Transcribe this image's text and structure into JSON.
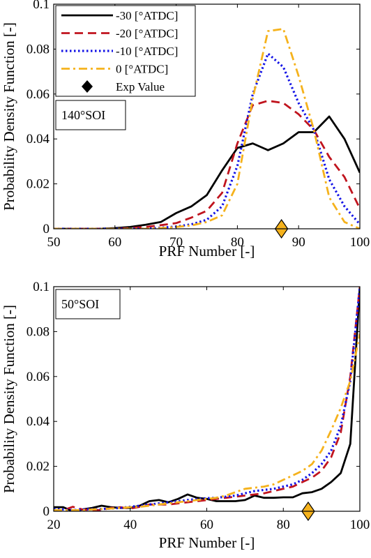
{
  "chart_data": [
    {
      "type": "line",
      "annotation": "140°SOI",
      "xlabel": "PRF Number [-]",
      "ylabel": "Probability Density Function [-]",
      "xlim": [
        50,
        100
      ],
      "ylim": [
        0,
        0.1
      ],
      "xticks": [
        50,
        60,
        70,
        80,
        90,
        100
      ],
      "yticks": [
        0,
        0.02,
        0.04,
        0.06,
        0.08,
        0.1
      ],
      "xtick_labels": [
        "50",
        "60",
        "70",
        "80",
        "90",
        "100"
      ],
      "ytick_labels": [
        "0",
        "0.02",
        "0.04",
        "0.06",
        "0.08",
        "0.1"
      ],
      "legend_position": "top-left",
      "series": [
        {
          "name": "-30 [°ATDC]",
          "color": "#000000",
          "style": "solid",
          "x": [
            50,
            52.5,
            55,
            57.5,
            60,
            62.5,
            65,
            67.5,
            70,
            72.5,
            75,
            77.5,
            80,
            82.5,
            85,
            87.5,
            90,
            92.5,
            95,
            97.5,
            100
          ],
          "y": [
            0,
            0,
            0,
            0,
            0.0003,
            0.0008,
            0.0018,
            0.003,
            0.007,
            0.01,
            0.015,
            0.026,
            0.036,
            0.038,
            0.035,
            0.038,
            0.043,
            0.043,
            0.05,
            0.04,
            0.025
          ]
        },
        {
          "name": "-20 [°ATDC]",
          "color": "#c0141e",
          "style": "dashed",
          "x": [
            50,
            52.5,
            55,
            57.5,
            60,
            62.5,
            65,
            67.5,
            70,
            72.5,
            75,
            77.5,
            80,
            82.5,
            85,
            87.5,
            90,
            92.5,
            95,
            97.5,
            100
          ],
          "y": [
            0,
            0,
            0,
            0,
            0,
            0.0003,
            0.0008,
            0.0016,
            0.0025,
            0.005,
            0.008,
            0.016,
            0.038,
            0.055,
            0.057,
            0.056,
            0.051,
            0.044,
            0.032,
            0.023,
            0.009
          ]
        },
        {
          "name": "-10 [°ATDC]",
          "color": "#1414e6",
          "style": "dotted",
          "x": [
            50,
            52.5,
            55,
            57.5,
            60,
            62.5,
            65,
            67.5,
            70,
            72.5,
            75,
            77.5,
            80,
            82.5,
            85,
            87.5,
            90,
            92.5,
            95,
            97.5,
            100
          ],
          "y": [
            0,
            0,
            0,
            0,
            0,
            0,
            0,
            0.0005,
            0.001,
            0.002,
            0.004,
            0.01,
            0.028,
            0.06,
            0.078,
            0.072,
            0.056,
            0.044,
            0.022,
            0.01,
            0.002
          ]
        },
        {
          "name": "0 [°ATDC]",
          "color": "#f5b21c",
          "style": "dashdot",
          "x": [
            50,
            52.5,
            55,
            57.5,
            60,
            62.5,
            65,
            67.5,
            70,
            72.5,
            75,
            77.5,
            80,
            82.5,
            85,
            87.5,
            90,
            92.5,
            95,
            97.5,
            100
          ],
          "y": [
            0,
            0,
            0,
            0,
            0,
            0,
            0,
            0.0003,
            0.0008,
            0.0015,
            0.003,
            0.006,
            0.02,
            0.058,
            0.088,
            0.089,
            0.068,
            0.044,
            0.014,
            0.003,
            0
          ]
        }
      ],
      "markers": [
        {
          "name": "Exp Value",
          "x": 87.2,
          "y": 0,
          "color": "#f5b21c"
        }
      ]
    },
    {
      "type": "line",
      "annotation": "50°SOI",
      "xlabel": "PRF Number [-]",
      "ylabel": "Probability Density Function [-]",
      "xlim": [
        20,
        100
      ],
      "ylim": [
        0,
        0.1
      ],
      "xticks": [
        20,
        40,
        60,
        80,
        100
      ],
      "yticks": [
        0,
        0.02,
        0.04,
        0.06,
        0.08,
        0.1
      ],
      "xtick_labels": [
        "20",
        "40",
        "60",
        "80",
        "100"
      ],
      "ytick_labels": [
        "0",
        "0.02",
        "0.04",
        "0.06",
        "0.08",
        "0.1"
      ],
      "series": [
        {
          "name": "-30 [°ATDC]",
          "color": "#000000",
          "style": "solid",
          "x": [
            20,
            22.5,
            25,
            27.5,
            30,
            32.5,
            35,
            37.5,
            40,
            42.5,
            45,
            47.5,
            50,
            52.5,
            55,
            57.5,
            60,
            62.5,
            65,
            67.5,
            70,
            72.5,
            75,
            77.5,
            80,
            82.5,
            85,
            87.5,
            90,
            92.5,
            95,
            97.5,
            100
          ],
          "y": [
            0.0018,
            0.0018,
            0,
            0.0008,
            0.0015,
            0.0025,
            0.0018,
            0.0015,
            0.0015,
            0.0025,
            0.0045,
            0.005,
            0.004,
            0.0055,
            0.0075,
            0.006,
            0.0055,
            0.0045,
            0.0045,
            0.0045,
            0.005,
            0.007,
            0.006,
            0.006,
            0.0062,
            0.0062,
            0.008,
            0.0085,
            0.01,
            0.013,
            0.017,
            0.03,
            0.1
          ]
        },
        {
          "name": "-20 [°ATDC]",
          "color": "#c0141e",
          "style": "dashed",
          "x": [
            20,
            22.5,
            25,
            27.5,
            30,
            32.5,
            35,
            37.5,
            40,
            42.5,
            45,
            47.5,
            50,
            52.5,
            55,
            57.5,
            60,
            62.5,
            65,
            67.5,
            70,
            72.5,
            75,
            77.5,
            80,
            82.5,
            85,
            87.5,
            90,
            92.5,
            95,
            97.5,
            100
          ],
          "y": [
            0.0005,
            0.0005,
            0.002,
            0.0008,
            0.0005,
            0.0005,
            0.0015,
            0.0018,
            0.0012,
            0.002,
            0.003,
            0.003,
            0.003,
            0.0035,
            0.004,
            0.0045,
            0.005,
            0.0055,
            0.006,
            0.0065,
            0.007,
            0.0075,
            0.008,
            0.009,
            0.01,
            0.011,
            0.013,
            0.015,
            0.018,
            0.024,
            0.035,
            0.06,
            0.1
          ]
        },
        {
          "name": "-10 [°ATDC]",
          "color": "#1414e6",
          "style": "dotted",
          "x": [
            20,
            22.5,
            25,
            27.5,
            30,
            32.5,
            35,
            37.5,
            40,
            42.5,
            45,
            47.5,
            50,
            52.5,
            55,
            57.5,
            60,
            62.5,
            65,
            67.5,
            70,
            72.5,
            75,
            77.5,
            80,
            82.5,
            85,
            87.5,
            90,
            92.5,
            95,
            97.5,
            100
          ],
          "y": [
            0.001,
            0.0008,
            0.0005,
            0.0008,
            0.001,
            0.001,
            0.0012,
            0.0015,
            0.002,
            0.0025,
            0.003,
            0.0035,
            0.004,
            0.0045,
            0.005,
            0.0055,
            0.0058,
            0.006,
            0.0065,
            0.007,
            0.008,
            0.009,
            0.0095,
            0.01,
            0.011,
            0.012,
            0.014,
            0.017,
            0.021,
            0.027,
            0.038,
            0.058,
            0.1
          ]
        },
        {
          "name": "0 [°ATDC]",
          "color": "#f5b21c",
          "style": "dashdot",
          "x": [
            20,
            22.5,
            25,
            27.5,
            30,
            32.5,
            35,
            37.5,
            40,
            42.5,
            45,
            47.5,
            50,
            52.5,
            55,
            57.5,
            60,
            62.5,
            65,
            67.5,
            70,
            72.5,
            75,
            77.5,
            80,
            82.5,
            85,
            87.5,
            90,
            92.5,
            95,
            97.5,
            100
          ],
          "y": [
            0.0005,
            0.0005,
            0.0005,
            0.0005,
            0.0008,
            0.001,
            0.0012,
            0.0015,
            0.0018,
            0.002,
            0.0025,
            0.003,
            0.0035,
            0.004,
            0.0045,
            0.005,
            0.0055,
            0.006,
            0.007,
            0.0085,
            0.01,
            0.0105,
            0.011,
            0.012,
            0.014,
            0.016,
            0.018,
            0.021,
            0.027,
            0.036,
            0.046,
            0.058,
            0.079
          ]
        }
      ],
      "markers": [
        {
          "name": "Exp Value",
          "x": 86.5,
          "y": 0,
          "color": "#f5b21c"
        }
      ]
    }
  ],
  "legend": [
    {
      "label": "-30 [°ATDC]",
      "color": "#000000",
      "style": "solid"
    },
    {
      "label": "-20 [°ATDC]",
      "color": "#c0141e",
      "style": "dashed"
    },
    {
      "label": "-10 [°ATDC]",
      "color": "#1414e6",
      "style": "dotted"
    },
    {
      "label": "0 [°ATDC]",
      "color": "#f5b21c",
      "style": "dashdot"
    },
    {
      "label": "Exp Value",
      "color": "#000000",
      "style": "diamond"
    }
  ]
}
